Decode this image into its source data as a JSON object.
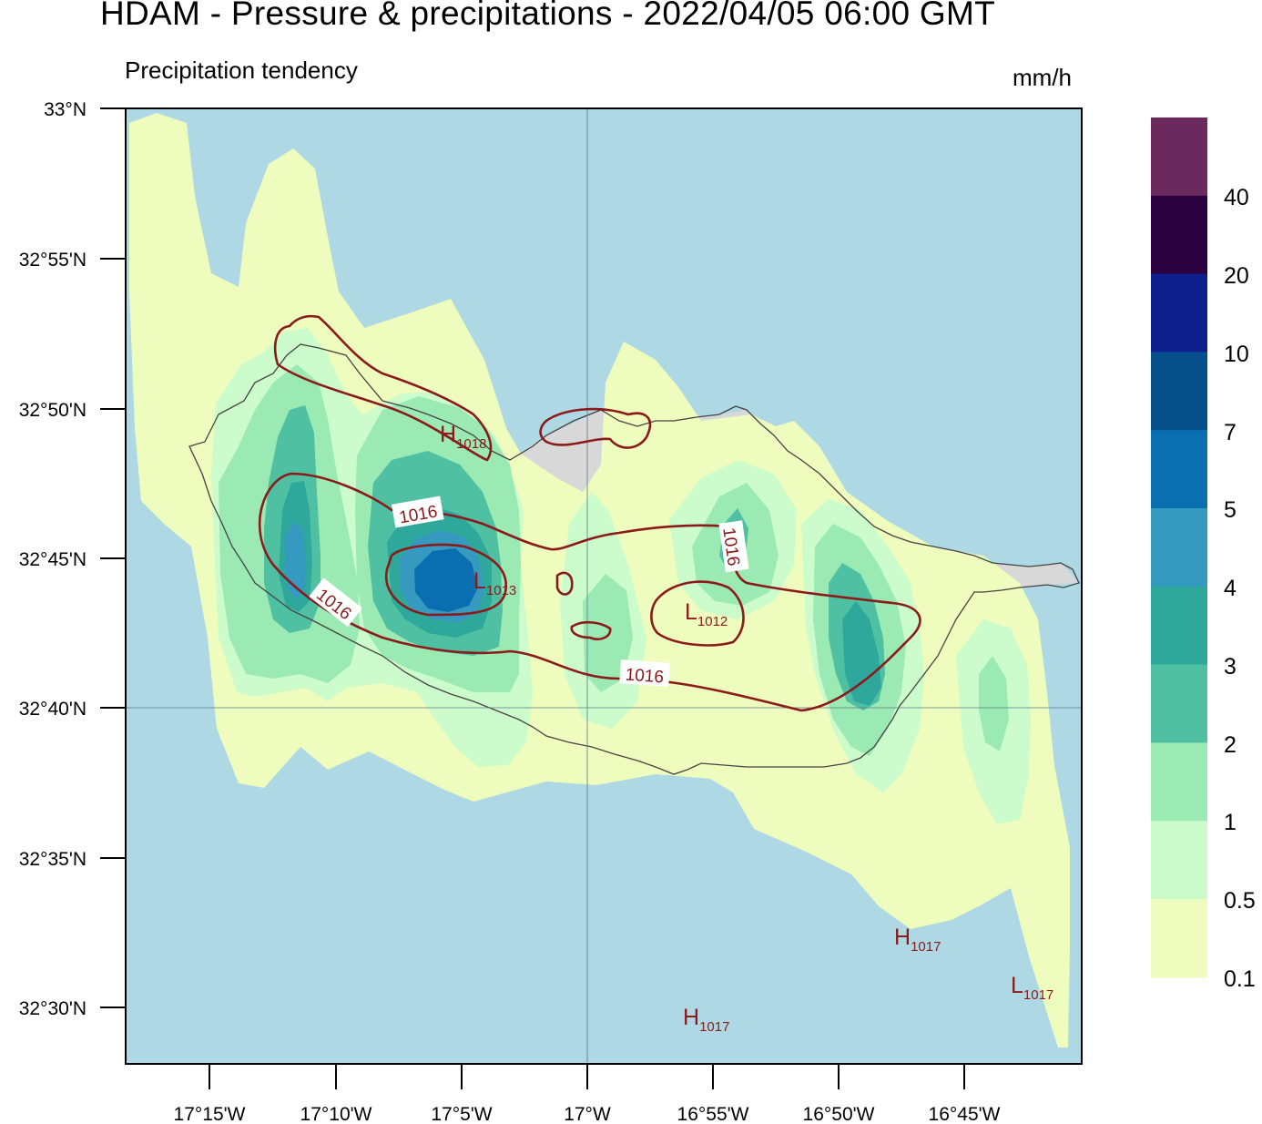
{
  "header": {
    "title": "HDAM - Pressure & precipitations  -  2022/04/05  06:00 GMT",
    "subtitle": "Precipitation tendency",
    "units": "mm/h"
  },
  "map": {
    "lat_ticks": [
      "33°N",
      "32°55'N",
      "32°50'N",
      "32°45'N",
      "32°40'N",
      "32°35'N",
      "32°30'N"
    ],
    "lon_ticks": [
      "17°15'W",
      "17°10'W",
      "17°5'W",
      "17°W",
      "16°55'W",
      "16°50'W",
      "16°45'W"
    ],
    "isobar_labels": [
      "1016",
      "1016",
      "1016",
      "1016"
    ],
    "pressure_centers": [
      {
        "letter": "H",
        "value": "1018"
      },
      {
        "letter": "L",
        "value": "1013"
      },
      {
        "letter": "L",
        "value": "1012"
      },
      {
        "letter": "H",
        "value": "1017"
      },
      {
        "letter": "H",
        "value": "1017"
      },
      {
        "letter": "L",
        "value": "1017"
      }
    ],
    "colors": {
      "sea": "#add8e4",
      "land": "#d8d8d8",
      "isobar": "#8b1a1a",
      "coast": "#444444"
    }
  },
  "legend": {
    "labels": [
      "40",
      "20",
      "10",
      "7",
      "5",
      "4",
      "3",
      "2",
      "1",
      "0.5",
      "0.1"
    ],
    "colors": [
      "#6b2a5e",
      "#2c0240",
      "#0c1f8c",
      "#07508c",
      "#0a6fb0",
      "#3699bf",
      "#2fa89c",
      "#50c0a2",
      "#9beab4",
      "#ccfccc",
      "#eefcbe"
    ]
  }
}
